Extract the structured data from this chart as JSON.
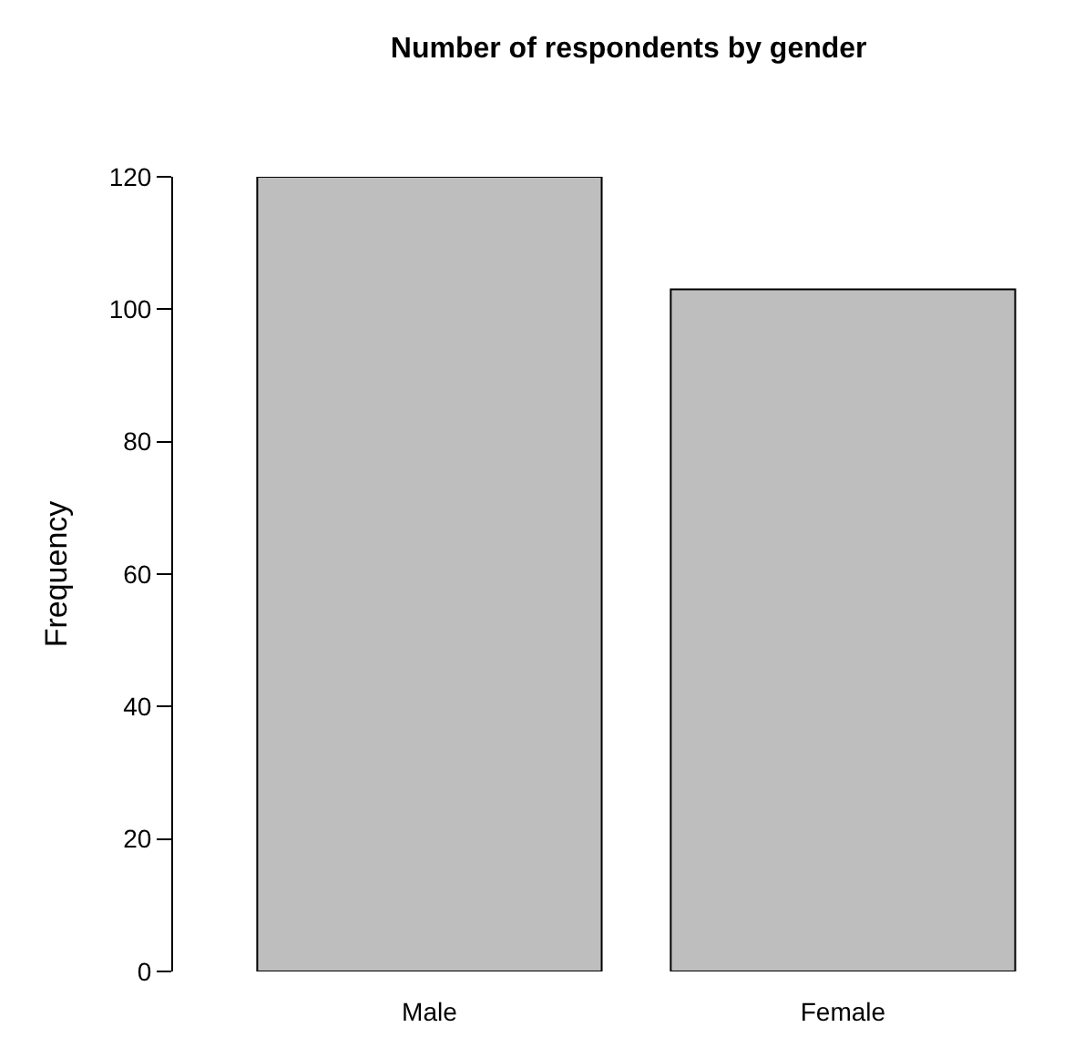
{
  "chart_data": {
    "type": "bar",
    "title": "Number of respondents by gender",
    "ylabel": "Frequency",
    "categories": [
      "Male",
      "Female"
    ],
    "values": [
      120,
      103
    ],
    "color": "#bebebe",
    "ylim": [
      0,
      120
    ],
    "yticks": [
      0,
      20,
      40,
      60,
      80,
      100,
      120
    ]
  }
}
